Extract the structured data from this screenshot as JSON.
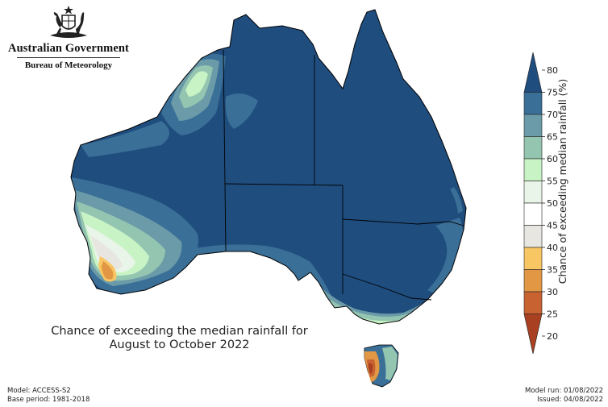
{
  "header": {
    "org_name": "Australian Government",
    "bureau_name": "Bureau of Meteorology",
    "logo": "coat-of-arms-icon"
  },
  "map": {
    "title_line1": "Chance of exceeding the median rainfall for",
    "title_line2": "August to October 2022",
    "region": "Australia",
    "dominant_category": "75-80",
    "regions_below_50": [
      "south-west Western Australia",
      "western Tasmania"
    ]
  },
  "colorbar": {
    "label": "Chance of exceeding median rainfall (%)",
    "ticks": [
      "80",
      "75",
      "70",
      "65",
      "60",
      "55",
      "50",
      "45",
      "40",
      "35",
      "30",
      "25",
      "20"
    ],
    "colors": [
      "#1f4d7e",
      "#3a6f97",
      "#6b9ba8",
      "#94c5b1",
      "#c8f3c4",
      "#e8f5e8",
      "#ffffff",
      "#e8e6e1",
      "#f8c663",
      "#e29745",
      "#c86331",
      "#a94021"
    ]
  },
  "footer": {
    "model": "Model: ACCESS-S2",
    "base_period": "Base period: 1981-2018",
    "model_run": "Model run: 01/08/2022",
    "issued": "Issued: 04/08/2022"
  }
}
